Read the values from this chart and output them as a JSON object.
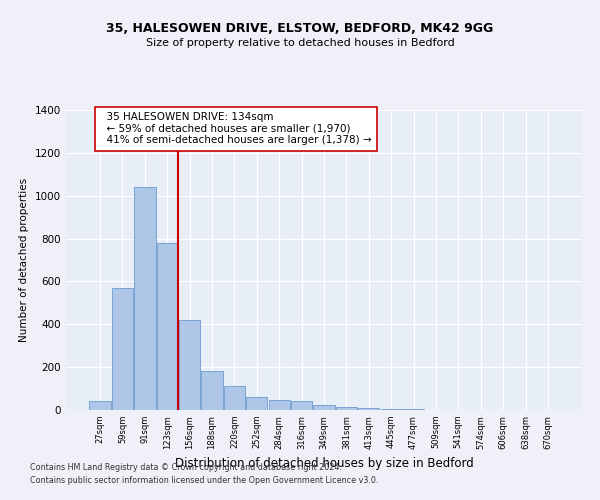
{
  "title1": "35, HALESOWEN DRIVE, ELSTOW, BEDFORD, MK42 9GG",
  "title2": "Size of property relative to detached houses in Bedford",
  "xlabel": "Distribution of detached houses by size in Bedford",
  "ylabel": "Number of detached properties",
  "categories": [
    "27sqm",
    "59sqm",
    "91sqm",
    "123sqm",
    "156sqm",
    "188sqm",
    "220sqm",
    "252sqm",
    "284sqm",
    "316sqm",
    "349sqm",
    "381sqm",
    "413sqm",
    "445sqm",
    "477sqm",
    "509sqm",
    "541sqm",
    "574sqm",
    "606sqm",
    "638sqm",
    "670sqm"
  ],
  "values": [
    40,
    570,
    1040,
    780,
    420,
    180,
    110,
    60,
    45,
    40,
    25,
    15,
    10,
    5,
    3,
    2,
    1,
    0,
    0,
    0,
    0
  ],
  "bar_color": "#aec6e8",
  "bar_edge_color": "#5b8fc9",
  "vline_x": 3.5,
  "vline_color": "#cc0000",
  "annotation_box_text": "  35 HALESOWEN DRIVE: 134sqm\n  ← 59% of detached houses are smaller (1,970)\n  41% of semi-detached houses are larger (1,378) →",
  "box_edge_color": "#cc0000",
  "footer1": "Contains HM Land Registry data © Crown copyright and database right 2024.",
  "footer2": "Contains public sector information licensed under the Open Government Licence v3.0.",
  "ylim": [
    0,
    1400
  ],
  "background_color": "#e8eef8",
  "grid_color": "#ffffff",
  "fig_bg": "#f0f0f8"
}
